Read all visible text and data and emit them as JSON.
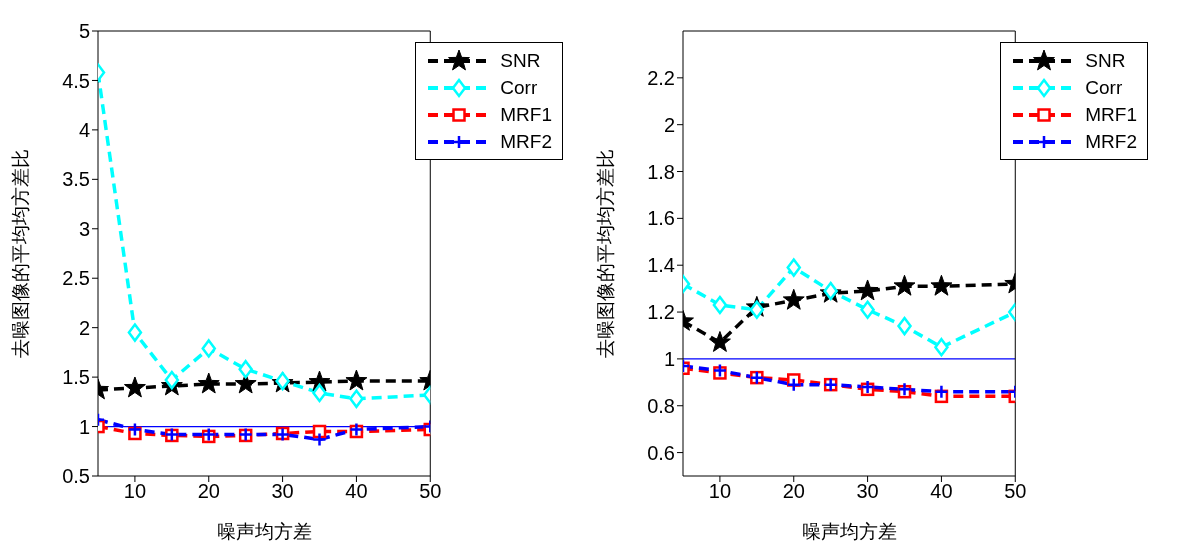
{
  "chart_data": [
    {
      "type": "line",
      "xlabel": "噪声均方差",
      "ylabel": "去噪图像的平均均方差比",
      "x": [
        5,
        10,
        15,
        20,
        25,
        30,
        35,
        40,
        50
      ],
      "xlim": [
        5,
        50
      ],
      "xticks": [
        10,
        20,
        30,
        40,
        50
      ],
      "ylim": [
        0.5,
        5
      ],
      "yticks": [
        0.5,
        1,
        1.5,
        2,
        2.5,
        3,
        3.5,
        4,
        4.5,
        5
      ],
      "grid": false,
      "legend": "top right",
      "line_style": "dashed",
      "series": [
        {
          "name": "SNR",
          "color": "#000000",
          "marker": "star",
          "values": [
            1.37,
            1.39,
            1.41,
            1.43,
            1.43,
            1.44,
            1.45,
            1.46,
            1.46
          ]
        },
        {
          "name": "Corr",
          "color": "#00ffff",
          "marker": "diamond",
          "values": [
            4.58,
            1.95,
            1.47,
            1.79,
            1.58,
            1.46,
            1.34,
            1.28,
            1.32
          ]
        },
        {
          "name": "MRF1",
          "color": "#ff0000",
          "marker": "square",
          "values": [
            1.0,
            0.93,
            0.91,
            0.9,
            0.91,
            0.93,
            0.95,
            0.95,
            0.97
          ]
        },
        {
          "name": "MRF2",
          "color": "#0000ff",
          "marker": "cross",
          "values": [
            1.07,
            0.97,
            0.92,
            0.92,
            0.92,
            0.92,
            0.87,
            0.97,
            1.0
          ]
        }
      ],
      "ref_lines": [
        {
          "axis": "y",
          "value": 1,
          "color": "#0000ff",
          "line_style": "solid"
        }
      ]
    },
    {
      "type": "line",
      "xlabel": "噪声均方差",
      "ylabel": "去噪图像的平均均方差比",
      "x": [
        5,
        10,
        15,
        20,
        25,
        30,
        35,
        40,
        50
      ],
      "xlim": [
        5,
        50
      ],
      "xticks": [
        10,
        20,
        30,
        40,
        50
      ],
      "ylim": [
        0.5,
        2.4
      ],
      "yticks": [
        0.6,
        0.8,
        1,
        1.2,
        1.4,
        1.6,
        1.8,
        2,
        2.2
      ],
      "grid": false,
      "legend": "top right",
      "line_style": "dashed",
      "series": [
        {
          "name": "SNR",
          "color": "#000000",
          "marker": "star",
          "values": [
            1.16,
            1.07,
            1.22,
            1.25,
            1.28,
            1.29,
            1.31,
            1.31,
            1.32
          ]
        },
        {
          "name": "Corr",
          "color": "#00ffff",
          "marker": "diamond",
          "values": [
            1.32,
            1.23,
            1.21,
            1.39,
            1.29,
            1.21,
            1.14,
            1.05,
            1.2
          ]
        },
        {
          "name": "MRF1",
          "color": "#ff0000",
          "marker": "square",
          "values": [
            0.96,
            0.94,
            0.92,
            0.91,
            0.89,
            0.87,
            0.86,
            0.84,
            0.84
          ]
        },
        {
          "name": "MRF2",
          "color": "#0000ff",
          "marker": "cross",
          "values": [
            0.97,
            0.95,
            0.92,
            0.89,
            0.89,
            0.88,
            0.87,
            0.86,
            0.86
          ]
        }
      ],
      "ref_lines": [
        {
          "axis": "y",
          "value": 1,
          "color": "#0000ff",
          "line_style": "solid"
        }
      ]
    }
  ]
}
